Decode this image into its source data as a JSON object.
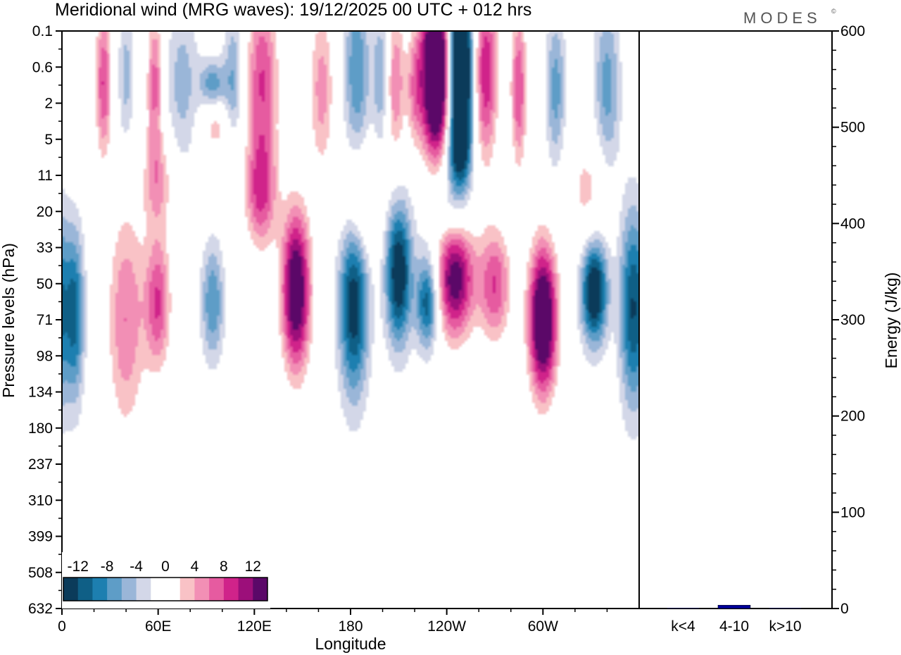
{
  "header": {
    "title": "Meridional wind (MRG waves):  19/12/2025  00 UTC  + 012 hrs",
    "brand": "MODES",
    "brand_mark": "©"
  },
  "chart_data": [
    {
      "type": "heatmap",
      "title": "Meridional wind (MRG waves):  19/12/2025  00 UTC  + 012 hrs",
      "xlabel": "Longitude",
      "ylabel": "Pressure levels (hPa)",
      "x_ticks": [
        "0",
        "60E",
        "120E",
        "180",
        "120W",
        "60W"
      ],
      "y_ticks": [
        "0.1",
        "0.6",
        "2",
        "5",
        "11",
        "20",
        "33",
        "50",
        "71",
        "98",
        "134",
        "180",
        "237",
        "310",
        "399",
        "508",
        "632"
      ],
      "colorbar": {
        "labels": [
          "-12",
          "-8",
          "-4",
          "0",
          "4",
          "8",
          "12"
        ],
        "levels": [
          -14,
          -12,
          -10,
          -8,
          -6,
          -4,
          -2,
          2,
          4,
          6,
          8,
          10,
          12,
          14
        ],
        "colors": [
          "#0b3b5a",
          "#0f5f86",
          "#1d7fb0",
          "#5e9dc7",
          "#9ab6d8",
          "#d3d7e8",
          "#ffffff",
          "#ffffff",
          "#f9c2c6",
          "#f28fb5",
          "#e65ba0",
          "#d0238a",
          "#9c0f7a",
          "#5b0868"
        ]
      },
      "regions": [
        {
          "lon": 300,
          "lev": 0.5,
          "rl": 9,
          "rv": 0.13,
          "v": 20
        },
        {
          "lon": 332,
          "lev": 0.45,
          "rl": 8,
          "rv": 0.09,
          "v": -16
        },
        {
          "lon": 245,
          "lev": 0.42,
          "rl": 12,
          "rv": 0.11,
          "v": 17
        },
        {
          "lon": 210,
          "lev": 0.42,
          "rl": 8,
          "rv": 0.12,
          "v": -15
        },
        {
          "lon": 146,
          "lev": 0.45,
          "rl": 9,
          "rv": 0.14,
          "v": 18
        },
        {
          "lon": 182,
          "lev": 0.47,
          "rl": 9,
          "rv": 0.16,
          "v": -14
        },
        {
          "lon": 356,
          "lev": 0.48,
          "rl": 8,
          "rv": 0.17,
          "v": -12
        },
        {
          "lon": 8,
          "lev": 0.49,
          "rl": 6,
          "rv": 0.15,
          "v": -10
        },
        {
          "lon": 40,
          "lev": 0.5,
          "rl": 12,
          "rv": 0.2,
          "v": 8
        },
        {
          "lon": 60,
          "lev": 0.47,
          "rl": 8,
          "rv": 0.12,
          "v": 10
        },
        {
          "lon": 94,
          "lev": 0.47,
          "rl": 7,
          "rv": 0.1,
          "v": -8
        },
        {
          "lon": 228,
          "lev": 0.47,
          "rl": 7,
          "rv": 0.08,
          "v": -12
        },
        {
          "lon": 270,
          "lev": 0.44,
          "rl": 10,
          "rv": 0.1,
          "v": 10
        },
        {
          "lon": 124,
          "lev": 0.28,
          "rl": 10,
          "rv": 0.1,
          "v": 10
        },
        {
          "lon": 186,
          "lev": 0.3,
          "rl": 12,
          "rv": 0.1,
          "v": 6
        },
        {
          "lon": 240,
          "lev": 0.3,
          "rl": 14,
          "rv": 0.1,
          "v": -6
        },
        {
          "lon": 328,
          "lev": 0.28,
          "rl": 12,
          "rv": 0.1,
          "v": 5
        },
        {
          "lon": 60,
          "lev": 0.26,
          "rl": 10,
          "rv": 0.08,
          "v": 6
        },
        {
          "lon": 248,
          "lev": 0.2,
          "rl": 7,
          "rv": 0.05,
          "v": -5
        },
        {
          "lon": 96,
          "lev": 0.17,
          "rl": 9,
          "rv": 0.04,
          "v": 5
        },
        {
          "lon": 94,
          "lev": 0.09,
          "rl": 8,
          "rv": 0.04,
          "v": -7
        },
        {
          "lon": 234,
          "lev": 0.07,
          "rl": 10,
          "rv": 0.16,
          "v": 25
        },
        {
          "lon": 248,
          "lev": 0.07,
          "rl": 8,
          "rv": 0.17,
          "v": -26
        },
        {
          "lon": 264,
          "lev": 0.07,
          "rl": 8,
          "rv": 0.16,
          "v": 12
        },
        {
          "lon": 220,
          "lev": 0.1,
          "rl": 5,
          "rv": 0.1,
          "v": 6
        },
        {
          "lon": 208,
          "lev": 0.09,
          "rl": 6,
          "rv": 0.13,
          "v": 8
        },
        {
          "lon": 199,
          "lev": 0.08,
          "rl": 5,
          "rv": 0.12,
          "v": -6
        },
        {
          "lon": 184,
          "lev": 0.07,
          "rl": 8,
          "rv": 0.15,
          "v": -8
        },
        {
          "lon": 162,
          "lev": 0.1,
          "rl": 8,
          "rv": 0.15,
          "v": 7
        },
        {
          "lon": 125,
          "lev": 0.08,
          "rl": 10,
          "rv": 0.15,
          "v": 10
        },
        {
          "lon": 107,
          "lev": 0.08,
          "rl": 6,
          "rv": 0.12,
          "v": -6
        },
        {
          "lon": 75,
          "lev": 0.09,
          "rl": 10,
          "rv": 0.14,
          "v": -5
        },
        {
          "lon": 58,
          "lev": 0.09,
          "rl": 5,
          "rv": 0.13,
          "v": 9
        },
        {
          "lon": 40,
          "lev": 0.08,
          "rl": 5,
          "rv": 0.12,
          "v": -5
        },
        {
          "lon": 26,
          "lev": 0.09,
          "rl": 5,
          "rv": 0.13,
          "v": 10
        },
        {
          "lon": 10,
          "lev": 0.07,
          "rl": 8,
          "rv": 0.15,
          "v": 4
        },
        {
          "lon": 285,
          "lev": 0.1,
          "rl": 5,
          "rv": 0.14,
          "v": 10
        },
        {
          "lon": 308,
          "lev": 0.1,
          "rl": 6,
          "rv": 0.13,
          "v": -7
        },
        {
          "lon": 340,
          "lev": 0.1,
          "rl": 8,
          "rv": 0.15,
          "v": -7
        }
      ]
    },
    {
      "type": "bar",
      "categories": [
        "k<4",
        "4-10",
        "k>10"
      ],
      "values": [
        0.5,
        3.5,
        0.5
      ],
      "ylabel": "Energy (J/kg)",
      "ylim": [
        0,
        600
      ],
      "y_ticks": [
        "0",
        "100",
        "200",
        "300",
        "400",
        "500",
        "600"
      ],
      "bar_color": "#000099"
    }
  ]
}
